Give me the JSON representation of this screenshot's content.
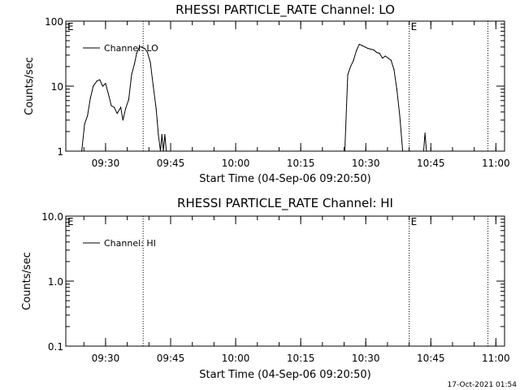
{
  "chart_data": [
    {
      "type": "line",
      "title": "RHESSI PARTICLE_RATE Channel: LO",
      "xlabel": "Start Time (04-Sep-06 09:20:50)",
      "ylabel": "Counts/sec",
      "y_scale": "log",
      "ylim": [
        1,
        100
      ],
      "xlim": [
        "09:20:50",
        "11:02:00"
      ],
      "x_ticks": [
        "09:30",
        "09:45",
        "10:00",
        "10:15",
        "10:30",
        "10:45",
        "11:00"
      ],
      "y_ticks": [
        "1",
        "10",
        "100"
      ],
      "legend": {
        "position": "top-left",
        "entries": [
          "Channel: LO"
        ]
      },
      "vlines": [
        {
          "x": "09:38:40",
          "label": ""
        },
        {
          "x": "10:40:00",
          "label": ""
        },
        {
          "x": "10:58:10",
          "label": ""
        }
      ],
      "markers": [
        {
          "x": "09:20:50",
          "label": "E"
        },
        {
          "x": "10:40:00",
          "label": "E"
        }
      ],
      "series": [
        {
          "name": "Channel: LO",
          "x": [
            "09:24:30",
            "09:25:10",
            "09:25:50",
            "09:26:30",
            "09:27:10",
            "09:28:00",
            "09:28:40",
            "09:29:20",
            "09:30:00",
            "09:30:40",
            "09:31:20",
            "09:32:00",
            "09:32:40",
            "09:33:30",
            "09:34:00",
            "09:34:40",
            "09:35:20",
            "09:36:00",
            "09:36:40",
            "09:37:10",
            "09:37:50",
            "09:38:20",
            "09:39:00",
            "09:39:40",
            "09:40:20",
            "09:41:00",
            "09:41:40",
            "09:42:10",
            "09:42:40",
            "09:43:00",
            "09:43:20",
            "09:43:40",
            "09:44:00",
            "09:44:20",
            "09:44:40",
            "09:45:00",
            "10:25:10",
            "10:25:50",
            "10:26:30",
            "10:27:10",
            "10:27:50",
            "10:28:30",
            "10:29:10",
            "10:29:50",
            "10:30:30",
            "10:31:10",
            "10:31:50",
            "10:32:30",
            "10:33:10",
            "10:33:50",
            "10:34:30",
            "10:35:10",
            "10:35:50",
            "10:36:30",
            "10:37:10",
            "10:37:50",
            "10:38:30",
            "10:39:10",
            "10:39:50",
            "10:40:20",
            "10:43:20",
            "10:43:40",
            "10:44:00"
          ],
          "y": [
            1,
            2.6,
            3.5,
            6.5,
            10,
            12,
            12.5,
            10,
            11,
            7.5,
            5,
            4.7,
            3.8,
            4.7,
            3,
            4.6,
            6.2,
            15,
            22,
            32,
            40,
            40,
            38,
            33,
            23,
            10,
            4.5,
            1.8,
            1,
            1.8,
            1,
            1.8,
            1,
            1,
            1,
            1,
            1,
            15,
            20,
            25,
            35,
            44,
            42,
            40,
            38,
            37,
            36,
            33,
            32,
            27,
            29,
            27,
            25,
            18,
            9,
            3.5,
            1,
            1,
            1,
            1,
            1,
            1.9,
            1
          ]
        }
      ]
    },
    {
      "type": "line",
      "title": "RHESSI PARTICLE_RATE Channel: HI",
      "xlabel": "Start Time (04-Sep-06 09:20:50)",
      "ylabel": "Counts/sec",
      "y_scale": "log",
      "ylim": [
        0.1,
        10
      ],
      "xlim": [
        "09:20:50",
        "11:02:00"
      ],
      "x_ticks": [
        "09:30",
        "09:45",
        "10:00",
        "10:15",
        "10:30",
        "10:45",
        "11:00"
      ],
      "y_ticks": [
        "0.1",
        "1.0",
        "10.0"
      ],
      "legend": {
        "position": "top-left",
        "entries": [
          "Channel: HI"
        ]
      },
      "vlines": [
        {
          "x": "09:38:40",
          "label": ""
        },
        {
          "x": "10:40:00",
          "label": ""
        },
        {
          "x": "10:58:10",
          "label": ""
        }
      ],
      "markers": [
        {
          "x": "09:20:50",
          "label": "E"
        },
        {
          "x": "10:40:00",
          "label": "E"
        }
      ],
      "series": [
        {
          "name": "Channel: HI",
          "x": [],
          "y": []
        }
      ]
    }
  ],
  "footer": {
    "timestamp": "17-Oct-2021 01:54"
  }
}
